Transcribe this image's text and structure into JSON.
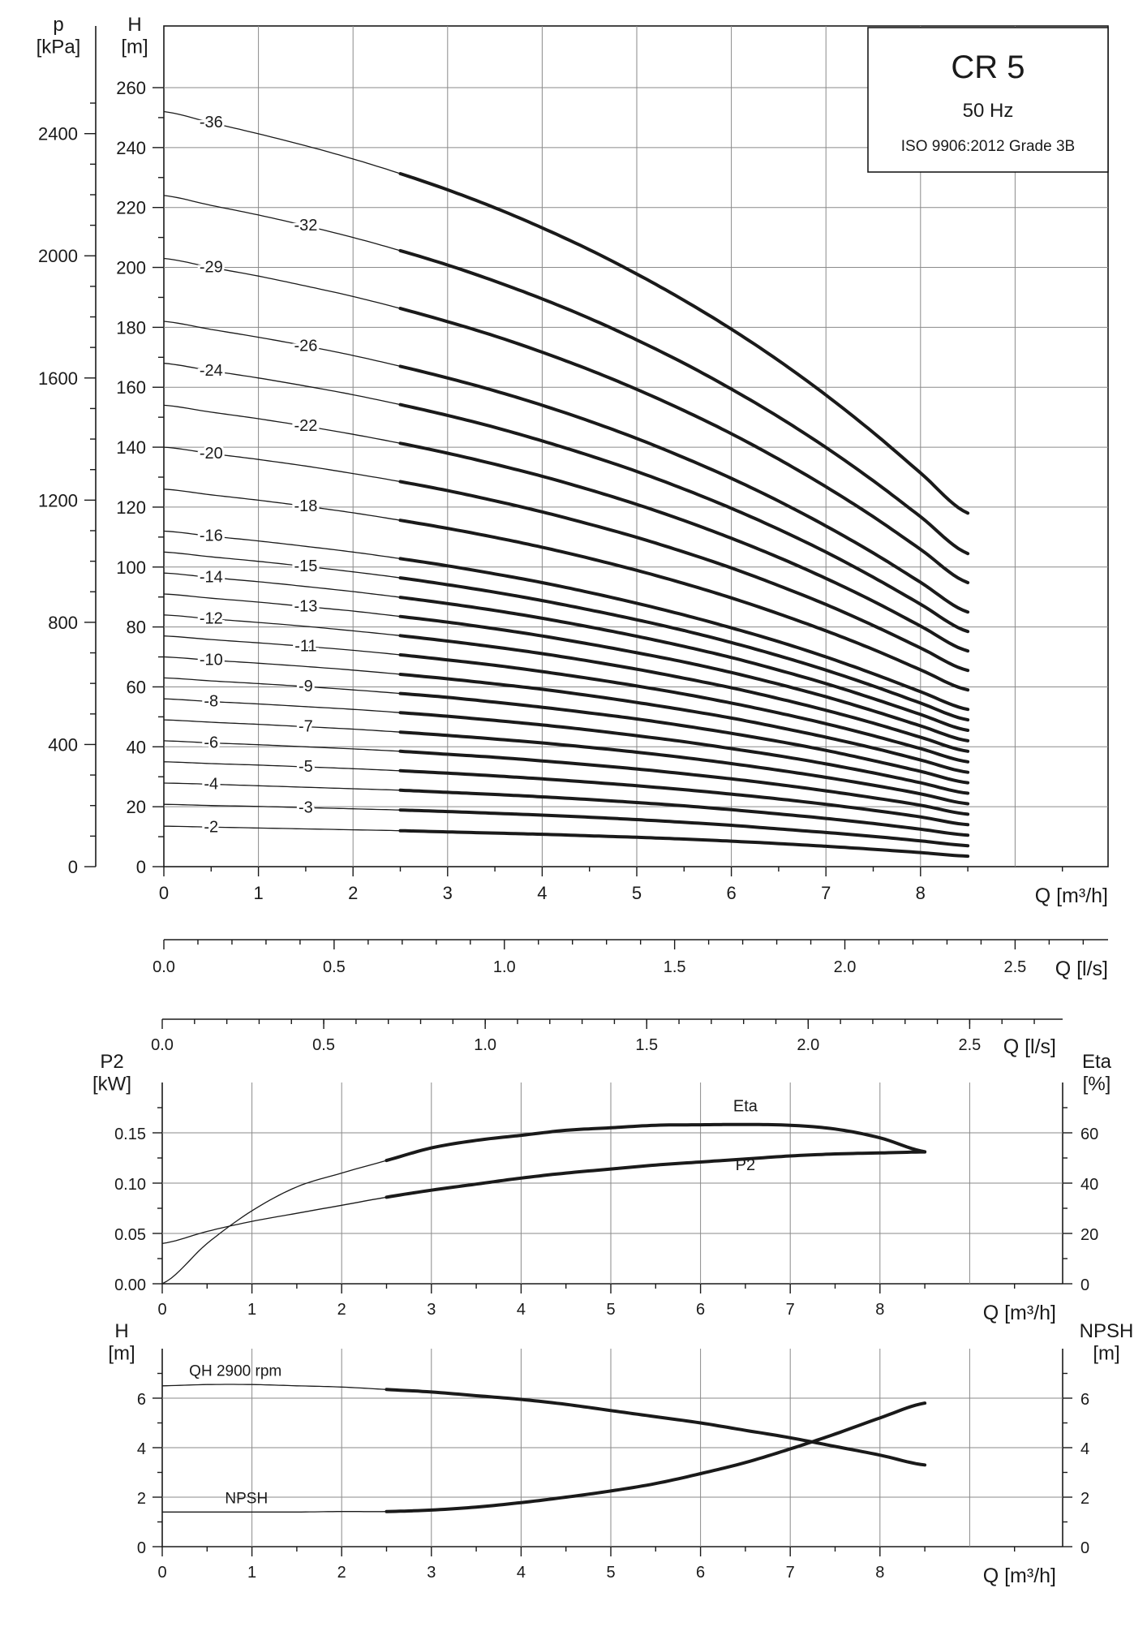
{
  "chart_data": [
    {
      "type": "line",
      "title": "CR 5",
      "subtitle": "50 Hz",
      "note": "ISO 9906:2012 Grade 3B",
      "xlabel": "Q [m³/h]",
      "x2label": "Q [l/s]",
      "ylabel_left": "p\n[kPa]",
      "ylabel": "H\n[m]",
      "xlim": [
        0,
        10
      ],
      "ylim": [
        0,
        260
      ],
      "x_ticks": [
        "0",
        "1",
        "2",
        "3",
        "4",
        "5",
        "6",
        "7",
        "8"
      ],
      "x2_ticks": [
        "0.0",
        "0.5",
        "1.0",
        "1.5",
        "2.0",
        "2.5"
      ],
      "y_ticks": [
        "0",
        "20",
        "40",
        "60",
        "80",
        "100",
        "120",
        "140",
        "160",
        "180",
        "200",
        "220",
        "240",
        "260"
      ],
      "p_ticks": [
        "0",
        "400",
        "800",
        "1200",
        "1600",
        "2000",
        "2400"
      ],
      "x": [
        0,
        0.5,
        1,
        1.5,
        2,
        2.5,
        3,
        3.5,
        4,
        4.5,
        5,
        5.5,
        6,
        6.5,
        7,
        7.5,
        8,
        8.5
      ],
      "recommended_range": [
        2.5,
        8.5
      ],
      "series": [
        {
          "name": "-2",
          "values": [
            13.5,
            13.2,
            12.9,
            12.6,
            12.3,
            12.0,
            11.6,
            11.2,
            10.8,
            10.3,
            9.8,
            9.2,
            8.5,
            7.7,
            6.8,
            5.8,
            4.7,
            3.5
          ]
        },
        {
          "name": "-3",
          "values": [
            20.8,
            20.4,
            20.1,
            19.7,
            19.3,
            18.9,
            18.4,
            17.8,
            17.2,
            16.5,
            15.7,
            14.8,
            13.8,
            12.6,
            11.4,
            10.1,
            8.6,
            7.0
          ]
        },
        {
          "name": "-4",
          "values": [
            27.9,
            27.5,
            27.0,
            26.5,
            26.0,
            25.5,
            24.8,
            24.1,
            23.3,
            22.4,
            21.4,
            20.3,
            19.0,
            17.6,
            16.1,
            14.4,
            12.5,
            10.5
          ]
        },
        {
          "name": "-5",
          "values": [
            35.0,
            34.4,
            33.9,
            33.3,
            32.7,
            32.0,
            31.2,
            30.3,
            29.3,
            28.2,
            27.0,
            25.7,
            24.2,
            22.6,
            20.8,
            18.8,
            16.6,
            14.0
          ]
        },
        {
          "name": "-6",
          "values": [
            42.0,
            41.3,
            40.7,
            40.0,
            39.3,
            38.5,
            37.5,
            36.5,
            35.3,
            34.0,
            32.6,
            31.0,
            29.3,
            27.4,
            25.3,
            23.0,
            20.5,
            17.5
          ]
        },
        {
          "name": "-7",
          "values": [
            49.0,
            48.2,
            47.5,
            46.7,
            45.9,
            44.9,
            43.8,
            42.6,
            41.3,
            39.8,
            38.2,
            36.4,
            34.4,
            32.2,
            29.8,
            27.2,
            24.3,
            21.0
          ]
        },
        {
          "name": "-8",
          "values": [
            56.0,
            55.1,
            54.3,
            53.4,
            52.5,
            51.4,
            50.2,
            48.8,
            47.3,
            45.6,
            43.7,
            41.7,
            39.4,
            37.0,
            34.3,
            31.3,
            28.0,
            24.5
          ]
        },
        {
          "name": "-9",
          "values": [
            63.0,
            62.0,
            61.1,
            60.1,
            59.0,
            57.8,
            56.5,
            54.9,
            53.2,
            51.3,
            49.3,
            47.0,
            44.5,
            41.8,
            38.8,
            35.4,
            31.8,
            28.0
          ]
        },
        {
          "name": "-10",
          "values": [
            70.0,
            68.9,
            67.9,
            66.8,
            65.6,
            64.2,
            62.7,
            61.0,
            59.2,
            57.1,
            54.8,
            52.3,
            49.6,
            46.5,
            43.2,
            39.6,
            35.6,
            31.5
          ]
        },
        {
          "name": "-11",
          "values": [
            77.0,
            75.8,
            74.7,
            73.5,
            72.2,
            70.7,
            69.0,
            67.2,
            65.1,
            62.8,
            60.3,
            57.6,
            54.6,
            51.3,
            47.7,
            43.7,
            39.4,
            35.0
          ]
        },
        {
          "name": "-12",
          "values": [
            84.0,
            82.7,
            81.5,
            80.2,
            78.7,
            77.1,
            75.3,
            73.3,
            71.1,
            68.6,
            65.9,
            62.9,
            59.7,
            56.1,
            52.2,
            47.9,
            43.2,
            38.5
          ]
        },
        {
          "name": "-13",
          "values": [
            91.0,
            89.6,
            88.3,
            86.8,
            85.3,
            83.5,
            81.6,
            79.4,
            77.0,
            74.3,
            71.4,
            68.3,
            64.8,
            60.9,
            56.7,
            52.0,
            47.0,
            42.0
          ]
        },
        {
          "name": "-14",
          "values": [
            98.0,
            96.5,
            95.1,
            93.5,
            91.8,
            89.9,
            87.8,
            85.5,
            82.9,
            80.0,
            76.9,
            73.5,
            69.8,
            65.6,
            61.1,
            56.1,
            50.8,
            45.5
          ]
        },
        {
          "name": "-15",
          "values": [
            105.0,
            103.4,
            101.9,
            100.2,
            98.4,
            96.4,
            94.1,
            91.6,
            88.8,
            85.7,
            82.4,
            78.8,
            74.8,
            70.4,
            65.6,
            60.3,
            54.6,
            49.0
          ]
        },
        {
          "name": "-16",
          "values": [
            112.0,
            110.3,
            108.7,
            106.9,
            105.0,
            102.8,
            100.4,
            97.7,
            94.8,
            91.5,
            87.9,
            84.0,
            79.7,
            75.1,
            70.0,
            64.4,
            58.4,
            52.5
          ]
        },
        {
          "name": "-18",
          "values": [
            126.0,
            124.1,
            122.3,
            120.3,
            118.1,
            115.6,
            112.9,
            109.9,
            106.6,
            102.9,
            98.9,
            94.5,
            89.7,
            84.4,
            78.7,
            72.5,
            65.7,
            59.0
          ]
        },
        {
          "name": "-20",
          "values": [
            140.0,
            137.9,
            135.9,
            133.7,
            131.2,
            128.5,
            125.5,
            122.1,
            118.4,
            114.3,
            109.9,
            105.0,
            99.7,
            93.8,
            87.5,
            80.5,
            73.0,
            65.5
          ]
        },
        {
          "name": "-22",
          "values": [
            154.0,
            151.7,
            149.5,
            147.0,
            144.3,
            141.3,
            138.0,
            134.3,
            130.3,
            125.8,
            120.9,
            115.5,
            109.6,
            103.2,
            96.2,
            88.6,
            80.3,
            72.0
          ]
        },
        {
          "name": "-24",
          "values": [
            168.0,
            165.5,
            163.1,
            160.4,
            157.5,
            154.2,
            150.6,
            146.6,
            142.1,
            137.2,
            131.9,
            126.0,
            119.6,
            112.6,
            105.0,
            96.6,
            87.6,
            78.5
          ]
        },
        {
          "name": "-26",
          "values": [
            182.0,
            179.3,
            176.7,
            173.8,
            170.6,
            167.0,
            163.1,
            158.8,
            154.0,
            148.7,
            142.9,
            136.5,
            129.6,
            122.0,
            113.7,
            104.7,
            94.9,
            85.0
          ]
        },
        {
          "name": "-29",
          "values": [
            203.0,
            200.0,
            197.1,
            193.8,
            190.3,
            186.3,
            181.9,
            177.1,
            171.7,
            165.8,
            159.3,
            152.2,
            144.5,
            136.0,
            126.8,
            116.8,
            105.9,
            94.8
          ]
        },
        {
          "name": "-32",
          "values": [
            224.0,
            220.7,
            217.5,
            213.9,
            210.0,
            205.6,
            200.8,
            195.4,
            189.5,
            183.0,
            175.8,
            168.0,
            159.4,
            150.1,
            139.9,
            128.8,
            116.8,
            104.5
          ]
        },
        {
          "name": "-36",
          "values": [
            252.0,
            248.3,
            244.6,
            240.6,
            236.2,
            231.3,
            225.9,
            219.9,
            213.2,
            205.9,
            197.8,
            189.0,
            179.4,
            168.9,
            157.4,
            144.9,
            131.4,
            118.0
          ]
        }
      ]
    },
    {
      "type": "line",
      "xlabel": "Q [m³/h]",
      "x2label": "Q [l/s]",
      "ylabel": "P2\n[kW]",
      "ylabel_right": "Eta\n[%]",
      "xlim": [
        0,
        10
      ],
      "ylim": [
        0,
        0.2
      ],
      "ylim_right": [
        0,
        80
      ],
      "x_ticks": [
        "0",
        "1",
        "2",
        "3",
        "4",
        "5",
        "6",
        "7",
        "8"
      ],
      "x2_ticks": [
        "0.0",
        "0.5",
        "1.0",
        "1.5",
        "2.0",
        "2.5"
      ],
      "y_ticks": [
        "0.00",
        "0.05",
        "0.10",
        "0.15"
      ],
      "y_right_ticks": [
        "0",
        "20",
        "40",
        "60"
      ],
      "recommended_range": [
        2.5,
        8.5
      ],
      "series": [
        {
          "name": "Eta",
          "axis": "right",
          "x": [
            0,
            0.5,
            1,
            1.5,
            2,
            2.5,
            3,
            3.5,
            4,
            4.5,
            5,
            5.5,
            6,
            6.5,
            7,
            7.5,
            8,
            8.5
          ],
          "values": [
            0,
            16,
            29,
            38.5,
            44,
            49,
            54,
            57,
            59,
            61,
            62,
            63,
            63.2,
            63.3,
            63,
            61.5,
            58,
            52.5
          ]
        },
        {
          "name": "P2",
          "axis": "left",
          "x": [
            0,
            0.5,
            1,
            1.5,
            2,
            2.5,
            3,
            3.5,
            4,
            4.5,
            5,
            5.5,
            6,
            6.5,
            7,
            7.5,
            8,
            8.5
          ],
          "values": [
            0.04,
            0.052,
            0.062,
            0.07,
            0.078,
            0.086,
            0.093,
            0.099,
            0.105,
            0.11,
            0.114,
            0.118,
            0.121,
            0.124,
            0.127,
            0.129,
            0.13,
            0.131
          ]
        }
      ]
    },
    {
      "type": "line",
      "xlabel": "Q [m³/h]",
      "ylabel": "H\n[m]",
      "ylabel_right": "NPSH\n[m]",
      "xlim": [
        0,
        10
      ],
      "ylim": [
        0,
        8
      ],
      "x_ticks": [
        "0",
        "1",
        "2",
        "3",
        "4",
        "5",
        "6",
        "7",
        "8"
      ],
      "y_ticks": [
        "0",
        "2",
        "4",
        "6"
      ],
      "y_right_ticks": [
        "0",
        "2",
        "4",
        "6"
      ],
      "recommended_range": [
        2.5,
        8.5
      ],
      "series": [
        {
          "name": "QH 2900 rpm",
          "x": [
            0,
            0.5,
            1,
            1.5,
            2,
            2.5,
            3,
            3.5,
            4,
            4.5,
            5,
            5.5,
            6,
            6.5,
            7,
            7.5,
            8,
            8.5
          ],
          "values": [
            6.5,
            6.55,
            6.55,
            6.5,
            6.45,
            6.35,
            6.25,
            6.1,
            5.95,
            5.75,
            5.5,
            5.25,
            5.0,
            4.7,
            4.4,
            4.05,
            3.7,
            3.3
          ]
        },
        {
          "name": "NPSH",
          "x": [
            0,
            0.5,
            1,
            1.5,
            2,
            2.5,
            3,
            3.5,
            4,
            4.5,
            5,
            5.5,
            6,
            6.5,
            7,
            7.5,
            8,
            8.5
          ],
          "values": [
            1.4,
            1.4,
            1.4,
            1.4,
            1.42,
            1.42,
            1.48,
            1.6,
            1.78,
            2.0,
            2.25,
            2.55,
            2.95,
            3.4,
            3.95,
            4.55,
            5.2,
            5.8
          ]
        }
      ]
    }
  ]
}
